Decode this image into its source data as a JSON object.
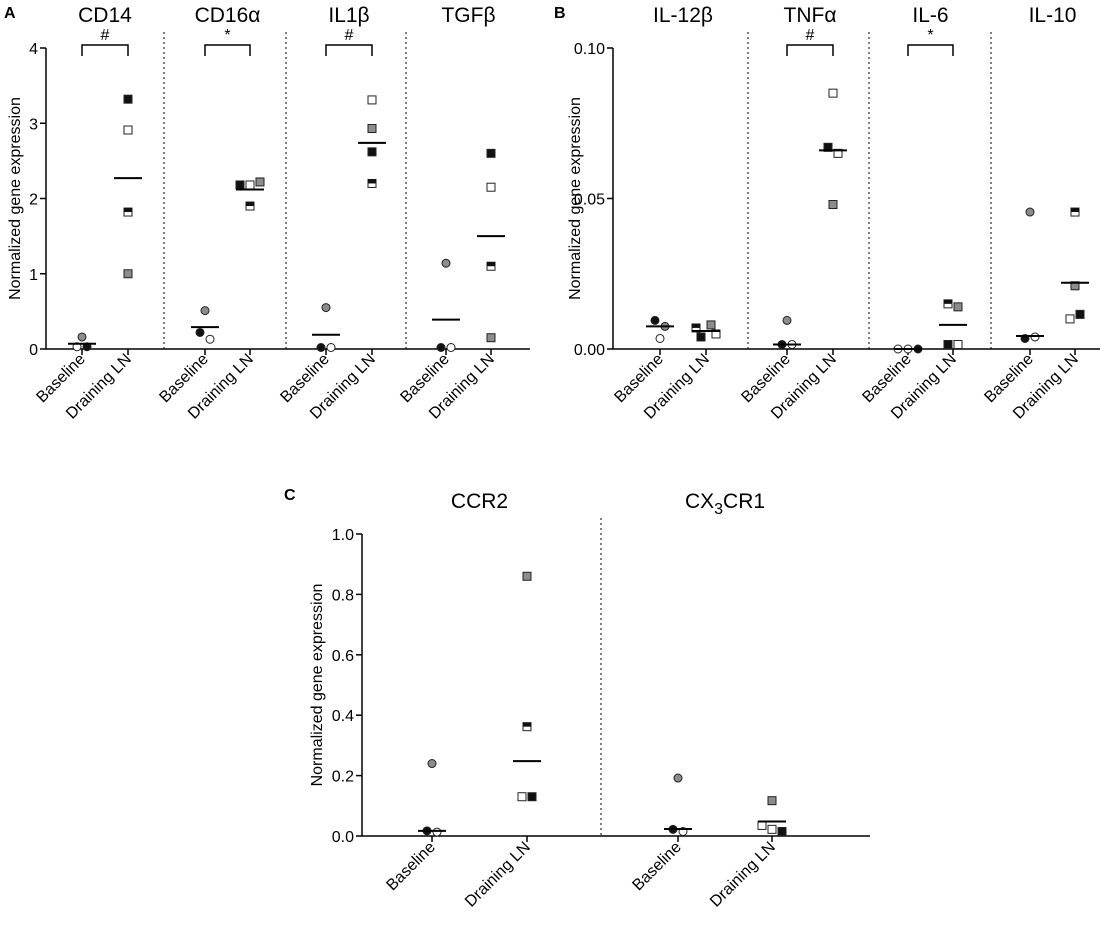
{
  "chart_data": [
    {
      "type": "scatter",
      "panel": "A",
      "ylabel": "Normalized gene expression",
      "ylim": [
        0,
        4
      ],
      "yticks": [
        "0",
        "1",
        "2",
        "3",
        "4"
      ],
      "groups": [
        "Baseline",
        "Draining LN"
      ],
      "subplots": [
        {
          "title": "CD14",
          "sig": "#",
          "baseline": {
            "mean": 0.07,
            "points": [
              {
                "v": 0.16,
                "s": "gray"
              },
              {
                "v": 0.03,
                "s": "white"
              },
              {
                "v": 0.03,
                "s": "black"
              }
            ]
          },
          "draining": {
            "mean": 2.27,
            "points": [
              {
                "v": 3.32,
                "s": "black"
              },
              {
                "v": 2.91,
                "s": "white"
              },
              {
                "v": 1.82,
                "s": "half"
              },
              {
                "v": 1.0,
                "s": "gray"
              }
            ]
          }
        },
        {
          "title": "CD16α",
          "sig": "*",
          "baseline": {
            "mean": 0.29,
            "points": [
              {
                "v": 0.51,
                "s": "gray"
              },
              {
                "v": 0.22,
                "s": "black"
              },
              {
                "v": 0.13,
                "s": "white"
              }
            ]
          },
          "draining": {
            "mean": 2.12,
            "points": [
              {
                "v": 2.18,
                "s": "black"
              },
              {
                "v": 2.18,
                "s": "white"
              },
              {
                "v": 2.22,
                "s": "gray"
              },
              {
                "v": 1.9,
                "s": "half"
              }
            ]
          }
        },
        {
          "title": "IL1β",
          "sig": "#",
          "baseline": {
            "mean": 0.19,
            "points": [
              {
                "v": 0.55,
                "s": "gray"
              },
              {
                "v": 0.02,
                "s": "black"
              },
              {
                "v": 0.02,
                "s": "white"
              }
            ]
          },
          "draining": {
            "mean": 2.74,
            "points": [
              {
                "v": 3.31,
                "s": "white"
              },
              {
                "v": 2.93,
                "s": "gray"
              },
              {
                "v": 2.62,
                "s": "black"
              },
              {
                "v": 2.2,
                "s": "half"
              }
            ]
          }
        },
        {
          "title": "TGFβ",
          "sig": "",
          "baseline": {
            "mean": 0.39,
            "points": [
              {
                "v": 1.14,
                "s": "gray"
              },
              {
                "v": 0.02,
                "s": "black"
              },
              {
                "v": 0.02,
                "s": "white"
              }
            ]
          },
          "draining": {
            "mean": 1.5,
            "points": [
              {
                "v": 2.6,
                "s": "black"
              },
              {
                "v": 2.15,
                "s": "white"
              },
              {
                "v": 1.1,
                "s": "half"
              },
              {
                "v": 0.15,
                "s": "gray"
              }
            ]
          }
        }
      ]
    },
    {
      "type": "scatter",
      "panel": "B",
      "ylabel": "Normalized gene expression",
      "ylim": [
        0,
        0.1
      ],
      "yticks": [
        "0.00",
        "0.05",
        "0.10"
      ],
      "groups": [
        "Baseline",
        "Draining LN"
      ],
      "subplots": [
        {
          "title": "IL-12β",
          "sig": "",
          "baseline": {
            "mean": 0.0075,
            "points": [
              {
                "v": 0.0095,
                "s": "black"
              },
              {
                "v": 0.0035,
                "s": "white"
              },
              {
                "v": 0.0075,
                "s": "gray"
              }
            ]
          },
          "draining": {
            "mean": 0.006,
            "points": [
              {
                "v": 0.007,
                "s": "half"
              },
              {
                "v": 0.008,
                "s": "gray"
              },
              {
                "v": 0.004,
                "s": "black"
              },
              {
                "v": 0.005,
                "s": "white"
              }
            ]
          }
        },
        {
          "title": "TNFα",
          "sig": "#",
          "baseline": {
            "mean": 0.0015,
            "points": [
              {
                "v": 0.0095,
                "s": "gray"
              },
              {
                "v": 0.0015,
                "s": "black"
              },
              {
                "v": 0.0015,
                "s": "white"
              }
            ]
          },
          "draining": {
            "mean": 0.066,
            "points": [
              {
                "v": 0.085,
                "s": "white"
              },
              {
                "v": 0.067,
                "s": "black"
              },
              {
                "v": 0.065,
                "s": "white"
              },
              {
                "v": 0.048,
                "s": "gray"
              }
            ]
          }
        },
        {
          "title": "IL-6",
          "sig": "*",
          "baseline": {
            "mean": 0.0,
            "points": [
              {
                "v": 0.0,
                "s": "white"
              },
              {
                "v": 0.0,
                "s": "white"
              },
              {
                "v": 0.0,
                "s": "black"
              }
            ]
          },
          "draining": {
            "mean": 0.008,
            "points": [
              {
                "v": 0.015,
                "s": "half"
              },
              {
                "v": 0.014,
                "s": "gray"
              },
              {
                "v": 0.0015,
                "s": "black"
              },
              {
                "v": 0.0015,
                "s": "white"
              }
            ]
          }
        },
        {
          "title": "IL-10",
          "sig": "",
          "baseline": {
            "mean": 0.0043,
            "points": [
              {
                "v": 0.0455,
                "s": "gray"
              },
              {
                "v": 0.0035,
                "s": "black"
              },
              {
                "v": 0.004,
                "s": "white"
              }
            ]
          },
          "draining": {
            "mean": 0.022,
            "points": [
              {
                "v": 0.0455,
                "s": "half"
              },
              {
                "v": 0.021,
                "s": "gray"
              },
              {
                "v": 0.01,
                "s": "white"
              },
              {
                "v": 0.0115,
                "s": "black"
              }
            ]
          }
        }
      ]
    },
    {
      "type": "scatter",
      "panel": "C",
      "ylabel": "Normalized gene expression",
      "ylim": [
        0,
        1
      ],
      "yticks": [
        "0.0",
        "0.2",
        "0.4",
        "0.6",
        "0.8",
        "1.0"
      ],
      "groups": [
        "Baseline",
        "Draining LN"
      ],
      "subplots": [
        {
          "title": "CCR2",
          "title_sub": "",
          "baseline": {
            "mean": 0.017,
            "points": [
              {
                "v": 0.24,
                "s": "gray"
              },
              {
                "v": 0.017,
                "s": "black"
              },
              {
                "v": 0.013,
                "s": "white"
              }
            ]
          },
          "draining": {
            "mean": 0.248,
            "points": [
              {
                "v": 0.86,
                "s": "gray"
              },
              {
                "v": 0.362,
                "s": "half"
              },
              {
                "v": 0.13,
                "s": "white"
              },
              {
                "v": 0.13,
                "s": "black"
              }
            ]
          }
        },
        {
          "title": "CX",
          "title_sub": "3",
          "title_suffix": "CR1",
          "baseline": {
            "mean": 0.023,
            "points": [
              {
                "v": 0.192,
                "s": "gray"
              },
              {
                "v": 0.022,
                "s": "black"
              },
              {
                "v": 0.015,
                "s": "white"
              }
            ]
          },
          "draining": {
            "mean": 0.048,
            "points": [
              {
                "v": 0.117,
                "s": "gray"
              },
              {
                "v": 0.035,
                "s": "white"
              },
              {
                "v": 0.022,
                "s": "white"
              },
              {
                "v": 0.015,
                "s": "black"
              }
            ]
          }
        }
      ]
    }
  ],
  "colors": {
    "black": "#111111",
    "gray": "#8c8c8c",
    "white": "#ffffff",
    "outline": "#222222"
  }
}
